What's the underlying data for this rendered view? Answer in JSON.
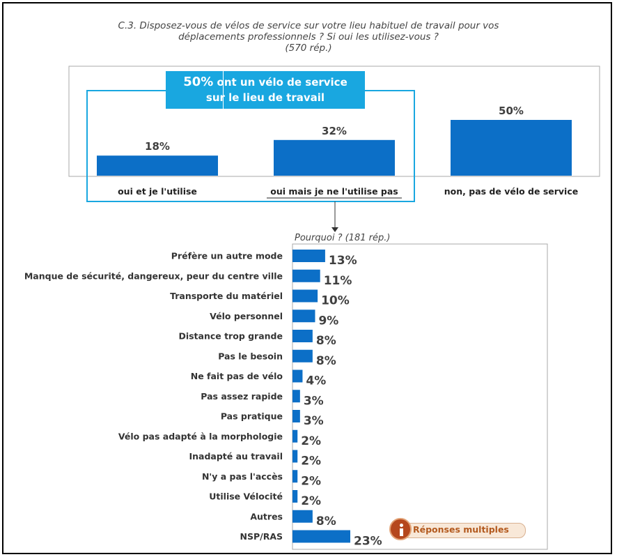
{
  "title": {
    "line1": "C.3. Disposez-vous de vélos de service sur votre lieu habituel de travail pour vos",
    "line2": "déplacements professionnels ? Si oui les utilisez-vous ?",
    "line3": "(570 rép.)"
  },
  "highlight": {
    "big": "50%",
    "line1_rest": " ont un vélo de service",
    "line2": "sur le lieu de travail"
  },
  "subchart_title": "Pourquoi ? (181 rép.)",
  "badge": {
    "label": "Réponses multiples",
    "icon": "info-icon"
  },
  "colors": {
    "bar": "#0c6fc7",
    "highlight": "#19a7e0",
    "badge": "#b5471c"
  },
  "chart_data": [
    {
      "type": "bar",
      "title": "C.3. Disposez-vous de vélos de service sur votre lieu habituel de travail pour vos déplacements professionnels ? Si oui les utilisez-vous ? (570 rép.)",
      "categories": [
        "oui et je l'utilise",
        "oui mais je ne l'utilise pas",
        "non, pas de vélo de service"
      ],
      "values": [
        18,
        32,
        50
      ],
      "labels": [
        "18%",
        "32%",
        "50%"
      ],
      "ylim": [
        0,
        60
      ],
      "grid": false
    },
    {
      "type": "bar",
      "orientation": "horizontal",
      "title": "Pourquoi ? (181 rép.)",
      "categories": [
        "Préfère un autre mode",
        "Manque de sécurité, dangereux, peur du centre ville",
        "Transporte du matériel",
        "Vélo personnel",
        "Distance trop grande",
        "Pas le besoin",
        "Ne fait pas de vélo",
        "Pas assez rapide",
        "Pas pratique",
        "Vélo pas adapté à la morphologie",
        "Inadapté au travail",
        "N'y a pas l'accès",
        "Utilise Vélocité",
        "Autres",
        "NSP/RAS"
      ],
      "values": [
        13,
        11,
        10,
        9,
        8,
        8,
        4,
        3,
        3,
        2,
        2,
        2,
        2,
        8,
        23
      ],
      "labels": [
        "13%",
        "11%",
        "10%",
        "9%",
        "8%",
        "8%",
        "4%",
        "3%",
        "3%",
        "2%",
        "2%",
        "2%",
        "2%",
        "8%",
        "23%"
      ],
      "xlim": [
        0,
        100
      ],
      "grid": false
    }
  ]
}
